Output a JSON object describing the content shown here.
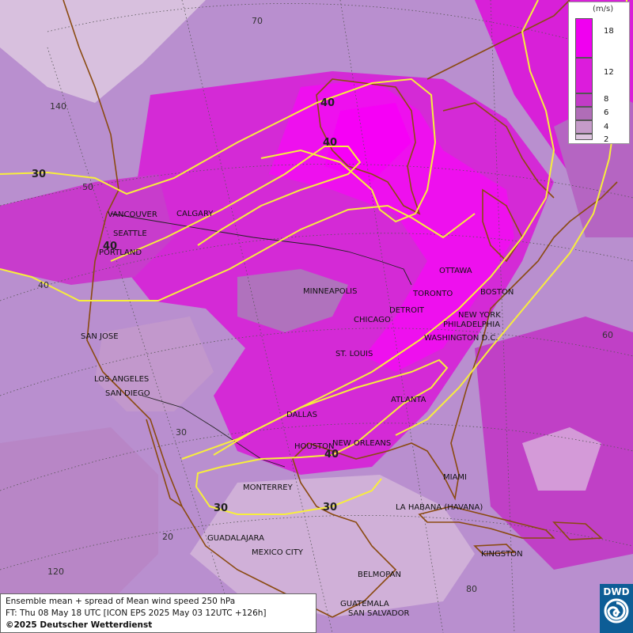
{
  "map": {
    "grid_labels": {
      "lat_70": "70",
      "lat_50": "50",
      "lat_40": "40",
      "lat_30": "30",
      "lat_20": "20",
      "lon_140": "140",
      "lon_120": "120",
      "lon_60": "60",
      "lon_80": "80"
    },
    "contour_labels": [
      "30",
      "40",
      "30",
      "40",
      "40",
      "40",
      "30",
      "30"
    ],
    "cities": [
      "VANCOUVER",
      "CALGARY",
      "SEATTLE",
      "PORTLAND",
      "SAN JOSE",
      "LOS ANGELES",
      "SAN DIEGO",
      "MINNEAPOLIS",
      "CHICAGO",
      "DETROIT",
      "TORONTO",
      "OTTAWA",
      "BOSTON",
      "NEW YORK",
      "PHILADELPHIA",
      "WASHINGTON D.C.",
      "ST. LOUIS",
      "ATLANTA",
      "DALLAS",
      "HOUSTON",
      "NEW ORLEANS",
      "MIAMI",
      "MONTERREY",
      "LA HABANA (HAVANA)",
      "GUADALAJARA",
      "MEXICO CITY",
      "BELMOPAN",
      "KINGSTON",
      "GUATEMALA",
      "SAN SALVADOR"
    ]
  },
  "legend": {
    "unit": "(m/s)",
    "ticks": [
      "18",
      "12",
      "8",
      "6",
      "4",
      "2"
    ],
    "colors": [
      "#f000f0",
      "#dc1cdc",
      "#c23cc6",
      "#b06db7",
      "#c59bc9",
      "#dcc4de"
    ]
  },
  "info": {
    "line1": "Ensemble mean + spread of Mean wind speed 250 hPa",
    "line2": "FT: Thu 08 May 18 UTC [ICON EPS 2025 May 03 12UTC +126h]",
    "line3": "©2025 Deutscher Wetterdienst"
  },
  "logo": {
    "text": "DWD",
    "color": "#0d5d96"
  }
}
